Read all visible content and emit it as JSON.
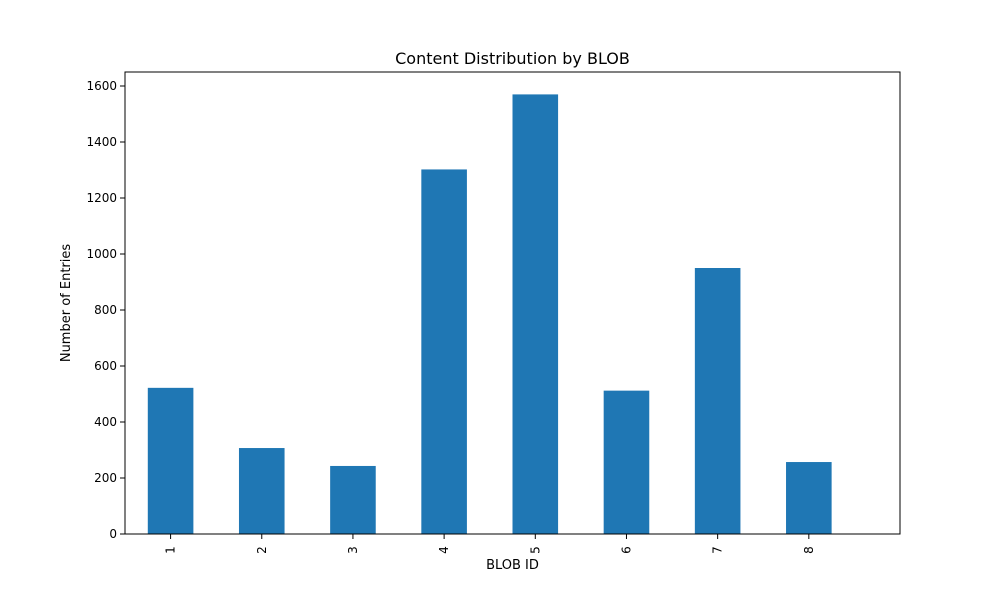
{
  "chart_data": {
    "type": "bar",
    "title": "Content Distribution by BLOB",
    "xlabel": "BLOB ID",
    "ylabel": "Number of Entries",
    "categories": [
      "1",
      "2",
      "3",
      "4",
      "5",
      "6",
      "7",
      "8"
    ],
    "values": [
      522,
      307,
      243,
      1302,
      1570,
      512,
      950,
      257
    ],
    "ylim": [
      0,
      1650
    ],
    "yticks": [
      0,
      200,
      400,
      600,
      800,
      1000,
      1200,
      1400,
      1600
    ],
    "bar_color": "#1f77b4",
    "grid": false,
    "legend": "none"
  }
}
